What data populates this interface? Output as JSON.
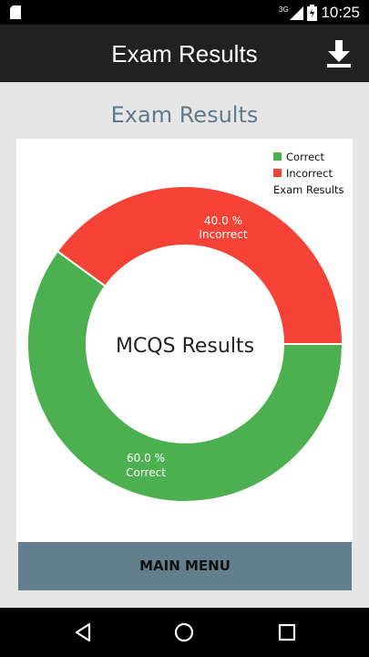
{
  "status_bar": {
    "time": "10:25",
    "network": "3G"
  },
  "app_bar": {
    "title": "Exam Results",
    "download_icon": "download-icon"
  },
  "section_title": "Exam Results",
  "legend": {
    "items": [
      {
        "label": "Correct",
        "color": "#4caf50"
      },
      {
        "label": "Incorrect",
        "color": "#f44336"
      }
    ],
    "description": "Exam Results"
  },
  "chart_data": {
    "type": "pie",
    "subtype": "donut",
    "center_text": "MCQS Results",
    "dataset_label": "Exam Results",
    "slices": [
      {
        "label": "Incorrect",
        "value": 40.0,
        "display": "40.0 %",
        "color": "#f44336"
      },
      {
        "label": "Correct",
        "value": 60.0,
        "display": "60.0 %",
        "color": "#4caf50"
      }
    ],
    "legend_position": "top-right"
  },
  "main_menu_label": "MAIN MENU",
  "nav_bar": {
    "back_icon": "back-icon",
    "home_icon": "home-icon",
    "recents_icon": "recents-icon"
  }
}
